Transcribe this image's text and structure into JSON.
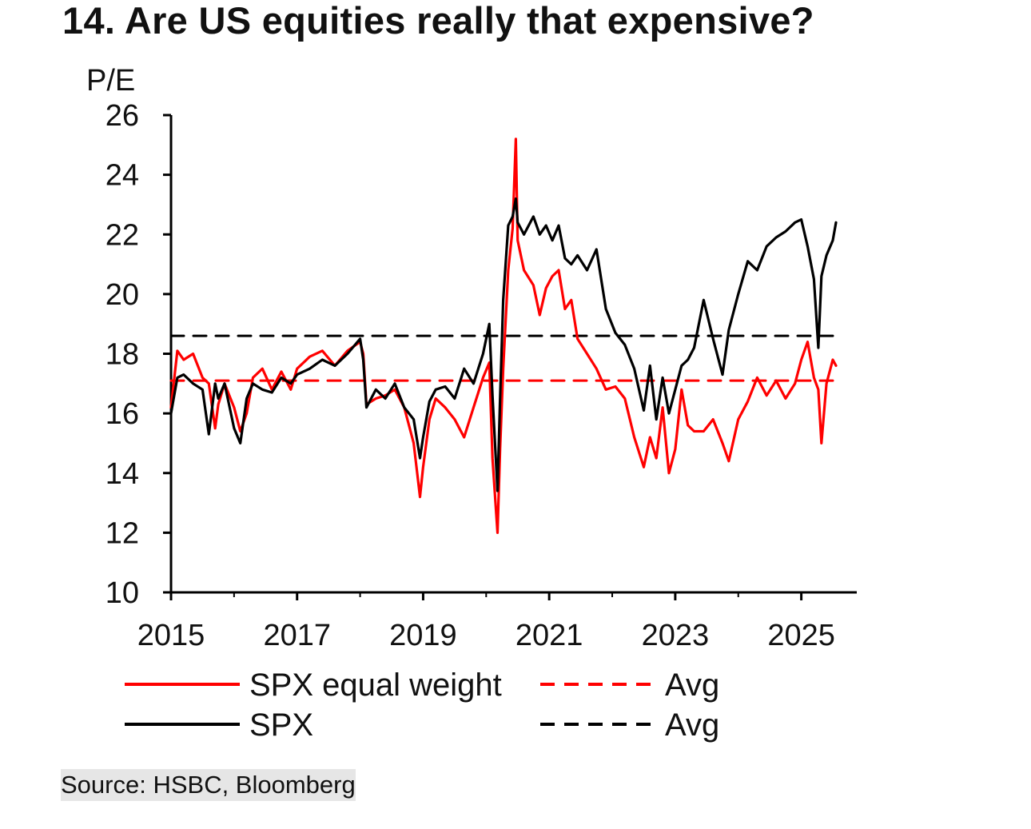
{
  "title": "14. Are US equities really that expensive?",
  "source": "Source: HSBC, Bloomberg",
  "chart_data": {
    "type": "line",
    "title": "14. Are US equities really that expensive?",
    "ylabel": "P/E",
    "xlabel": "",
    "ylim": [
      10,
      26
    ],
    "xlim": [
      2015.0,
      2025.75
    ],
    "yticks": [
      10,
      12,
      14,
      16,
      18,
      20,
      22,
      24,
      26
    ],
    "xticks": [
      2015,
      2017,
      2019,
      2021,
      2023,
      2025
    ],
    "xtick_labels": [
      "2015",
      "2017",
      "2019",
      "2021",
      "2023",
      "2025"
    ],
    "grid": false,
    "legend_position": "bottom",
    "colors": {
      "spx_equal_weight": "#ff0000",
      "spx": "#000000"
    },
    "series": [
      {
        "name": "SPX equal weight",
        "color": "#ff0000",
        "style": "solid",
        "x": [
          2015.0,
          2015.1,
          2015.2,
          2015.35,
          2015.5,
          2015.6,
          2015.7,
          2015.75,
          2015.85,
          2016.0,
          2016.1,
          2016.2,
          2016.3,
          2016.45,
          2016.6,
          2016.75,
          2016.9,
          2017.0,
          2017.2,
          2017.4,
          2017.6,
          2017.8,
          2018.0,
          2018.05,
          2018.1,
          2018.25,
          2018.4,
          2018.55,
          2018.7,
          2018.85,
          2018.95,
          2019.0,
          2019.1,
          2019.2,
          2019.35,
          2019.5,
          2019.65,
          2019.8,
          2019.95,
          2020.05,
          2020.1,
          2020.18,
          2020.22,
          2020.27,
          2020.35,
          2020.42,
          2020.47,
          2020.5,
          2020.6,
          2020.75,
          2020.85,
          2020.95,
          2021.05,
          2021.15,
          2021.25,
          2021.35,
          2021.45,
          2021.6,
          2021.75,
          2021.9,
          2022.05,
          2022.2,
          2022.35,
          2022.5,
          2022.6,
          2022.7,
          2022.8,
          2022.9,
          2023.0,
          2023.1,
          2023.2,
          2023.3,
          2023.45,
          2023.6,
          2023.75,
          2023.85,
          2024.0,
          2024.15,
          2024.3,
          2024.45,
          2024.6,
          2024.75,
          2024.9,
          2025.0,
          2025.1,
          2025.2,
          2025.27,
          2025.32,
          2025.4,
          2025.5,
          2025.55
        ],
        "y": [
          16.2,
          18.1,
          17.8,
          18.0,
          17.2,
          17.0,
          15.5,
          16.3,
          17.0,
          16.2,
          15.4,
          16.0,
          17.2,
          17.5,
          16.8,
          17.4,
          16.8,
          17.5,
          17.9,
          18.1,
          17.6,
          18.1,
          18.4,
          18.0,
          16.3,
          16.5,
          16.6,
          16.8,
          16.2,
          15.0,
          13.2,
          14.2,
          15.8,
          16.5,
          16.2,
          15.8,
          15.2,
          16.2,
          17.2,
          17.7,
          14.5,
          12.0,
          14.8,
          17.5,
          20.8,
          22.2,
          25.2,
          21.8,
          20.8,
          20.3,
          19.3,
          20.2,
          20.6,
          20.8,
          19.5,
          19.8,
          18.5,
          18.0,
          17.5,
          16.8,
          16.9,
          16.5,
          15.2,
          14.2,
          15.2,
          14.5,
          16.2,
          14.0,
          14.8,
          16.8,
          15.6,
          15.4,
          15.4,
          15.8,
          15.0,
          14.4,
          15.8,
          16.4,
          17.2,
          16.6,
          17.1,
          16.5,
          17.0,
          17.8,
          18.4,
          17.2,
          16.8,
          15.0,
          17.0,
          17.8,
          17.6
        ]
      },
      {
        "name": "Avg",
        "color": "#ff0000",
        "style": "dashed",
        "x": [
          2015.0,
          2025.55
        ],
        "y": [
          17.1,
          17.1
        ]
      },
      {
        "name": "SPX",
        "color": "#000000",
        "style": "solid",
        "x": [
          2015.0,
          2015.1,
          2015.2,
          2015.35,
          2015.5,
          2015.6,
          2015.7,
          2015.75,
          2015.85,
          2016.0,
          2016.1,
          2016.2,
          2016.3,
          2016.45,
          2016.6,
          2016.75,
          2016.9,
          2017.0,
          2017.2,
          2017.4,
          2017.6,
          2017.8,
          2018.0,
          2018.05,
          2018.1,
          2018.25,
          2018.4,
          2018.55,
          2018.7,
          2018.85,
          2018.95,
          2019.0,
          2019.1,
          2019.2,
          2019.35,
          2019.5,
          2019.65,
          2019.8,
          2019.95,
          2020.05,
          2020.1,
          2020.18,
          2020.22,
          2020.27,
          2020.35,
          2020.42,
          2020.47,
          2020.5,
          2020.6,
          2020.75,
          2020.85,
          2020.95,
          2021.05,
          2021.15,
          2021.25,
          2021.35,
          2021.45,
          2021.6,
          2021.75,
          2021.9,
          2022.05,
          2022.2,
          2022.35,
          2022.5,
          2022.6,
          2022.7,
          2022.8,
          2022.9,
          2023.0,
          2023.1,
          2023.2,
          2023.3,
          2023.45,
          2023.6,
          2023.75,
          2023.85,
          2024.0,
          2024.15,
          2024.3,
          2024.45,
          2024.6,
          2024.75,
          2024.9,
          2025.0,
          2025.1,
          2025.2,
          2025.27,
          2025.32,
          2025.4,
          2025.5,
          2025.55
        ],
        "y": [
          16.0,
          17.2,
          17.3,
          17.0,
          16.8,
          15.3,
          17.0,
          16.5,
          17.0,
          15.5,
          15.0,
          16.5,
          17.0,
          16.8,
          16.7,
          17.2,
          17.0,
          17.3,
          17.5,
          17.8,
          17.6,
          18.0,
          18.5,
          17.8,
          16.2,
          16.8,
          16.5,
          17.0,
          16.2,
          15.8,
          14.5,
          15.2,
          16.4,
          16.8,
          16.9,
          16.5,
          17.5,
          17.0,
          18.0,
          19.0,
          16.6,
          13.4,
          16.5,
          19.8,
          22.3,
          22.6,
          23.2,
          22.4,
          22.0,
          22.6,
          22.0,
          22.3,
          21.8,
          22.3,
          21.2,
          21.0,
          21.3,
          20.8,
          21.5,
          19.5,
          18.7,
          18.3,
          17.5,
          16.1,
          17.6,
          15.8,
          17.2,
          16.0,
          16.8,
          17.6,
          17.8,
          18.2,
          19.8,
          18.5,
          17.3,
          18.8,
          20.0,
          21.1,
          20.8,
          21.6,
          21.9,
          22.1,
          22.4,
          22.5,
          21.6,
          20.5,
          18.2,
          20.6,
          21.3,
          21.8,
          22.4
        ]
      },
      {
        "name": "Avg",
        "color": "#000000",
        "style": "dashed",
        "x": [
          2015.0,
          2025.55
        ],
        "y": [
          18.6,
          18.6
        ]
      }
    ]
  }
}
